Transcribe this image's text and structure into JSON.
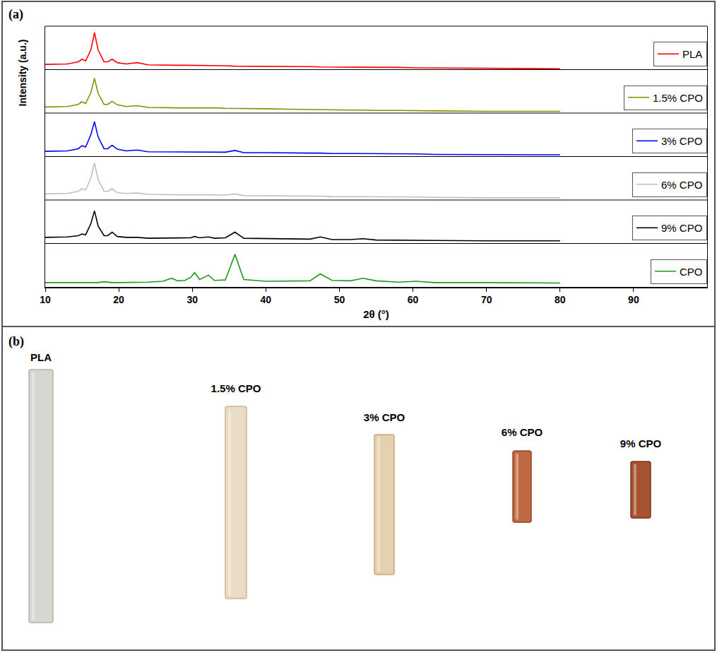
{
  "chart_data": {
    "type": "line",
    "panel_label": "(a)",
    "x_label": "2θ (°)",
    "y_label": "Intensity (a.u.)",
    "x": [
      10,
      13,
      14.5,
      15,
      15.5,
      16.2,
      16.7,
      17.2,
      18,
      18.5,
      19.1,
      19.8,
      21,
      22.5,
      24,
      26,
      27.2,
      28,
      29,
      29.8,
      30.3,
      31,
      32.2,
      33,
      34.5,
      35.8,
      37,
      40,
      43,
      46,
      47.4,
      49,
      51.5,
      53.2,
      55,
      58,
      60.4,
      63,
      70,
      80
    ],
    "series": [
      {
        "name": "PLA",
        "color": "#ff0000",
        "values": [
          12,
          13,
          18,
          24,
          20,
          45,
          85,
          45,
          18,
          18,
          24,
          16,
          13,
          16,
          11,
          10,
          10,
          10,
          10,
          10,
          10,
          10,
          9,
          9,
          9,
          8,
          8,
          8,
          7,
          7,
          6,
          6,
          5,
          5,
          5,
          5,
          4,
          4,
          3,
          2
        ]
      },
      {
        "name": "1.5% CPO",
        "color": "#8c8c00",
        "values": [
          14,
          15,
          20,
          26,
          22,
          47,
          80,
          45,
          20,
          20,
          27,
          19,
          15,
          17,
          13,
          12,
          12,
          12,
          12,
          12,
          12,
          13,
          13,
          12,
          11,
          11,
          10,
          10,
          9,
          8,
          8,
          7,
          7,
          7,
          6,
          6,
          6,
          5,
          4,
          4
        ]
      },
      {
        "name": "3% CPO",
        "color": "#0000ff",
        "values": [
          12,
          13,
          18,
          25,
          22,
          50,
          80,
          45,
          18,
          18,
          26,
          17,
          13,
          15,
          11,
          11,
          11,
          11,
          11,
          11,
          11,
          11,
          11,
          10,
          10,
          14,
          9,
          9,
          8,
          8,
          8,
          7,
          7,
          7,
          6,
          6,
          6,
          5,
          5,
          4
        ]
      },
      {
        "name": "6% CPO",
        "color": "#c0c0c0",
        "values": [
          14,
          15,
          20,
          26,
          23,
          50,
          85,
          47,
          20,
          20,
          26,
          17,
          15,
          16,
          13,
          12,
          12,
          12,
          12,
          12,
          13,
          12,
          12,
          12,
          11,
          14,
          10,
          10,
          9,
          9,
          9,
          8,
          8,
          8,
          7,
          7,
          7,
          6,
          5,
          5
        ]
      },
      {
        "name": "9% CPO",
        "color": "#000000",
        "values": [
          14,
          15,
          18,
          22,
          20,
          45,
          75,
          40,
          18,
          18,
          26,
          16,
          14,
          14,
          12,
          12,
          13,
          12,
          13,
          13,
          16,
          13,
          15,
          12,
          13,
          26,
          12,
          11,
          10,
          10,
          15,
          9,
          9,
          11,
          8,
          8,
          8,
          7,
          6,
          6
        ]
      },
      {
        "name": "CPO",
        "color": "#1f9a1f",
        "values": [
          10,
          10,
          10,
          10,
          10,
          10,
          11,
          10,
          12,
          11,
          10,
          10,
          10,
          10,
          11,
          13,
          20,
          14,
          15,
          22,
          33,
          17,
          27,
          15,
          16,
          75,
          17,
          13,
          13,
          14,
          30,
          15,
          14,
          20,
          14,
          11,
          13,
          10,
          10,
          9
        ]
      }
    ],
    "xlim": [
      10,
      100
    ],
    "xticks": [
      10,
      20,
      30,
      40,
      50,
      60,
      70,
      80,
      90
    ],
    "ylim": [
      0,
      100
    ],
    "tick_labels": "x",
    "grid": false,
    "legend": "lower right"
  },
  "panel_b": {
    "panel_label": "(b)",
    "samples": [
      "PLA",
      "1.5% CPO",
      "3% CPO",
      "6% CPO",
      "9% CPO"
    ]
  }
}
